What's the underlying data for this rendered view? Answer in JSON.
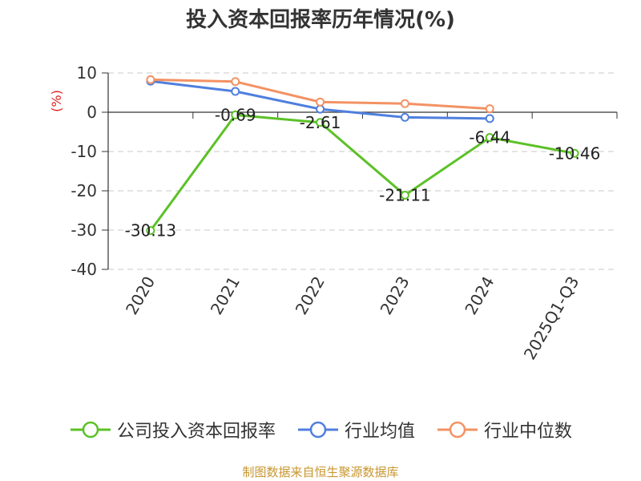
{
  "chart_data": {
    "type": "line",
    "title": "投入资本回报率历年情况(%)",
    "ylabel": "(%)",
    "ylim": [
      -40,
      10
    ],
    "yticks": [
      10,
      0,
      -10,
      -20,
      -30,
      -40
    ],
    "grid": true,
    "legend_position": "bottom",
    "categories": [
      "2020",
      "2021",
      "2022",
      "2023",
      "2024",
      "2025Q1-Q3"
    ],
    "series": [
      {
        "name": "公司投入资本回报率",
        "color": "#5cc127",
        "values": [
          -30.13,
          -0.69,
          -2.61,
          -21.11,
          -6.44,
          -10.46
        ],
        "labels": [
          "-30.13",
          "-0.69",
          "-2.61",
          "-21.11",
          "-6.44",
          "-10.46"
        ]
      },
      {
        "name": "行业均值",
        "color": "#4f7fde",
        "values": [
          7.9,
          5.3,
          0.8,
          -1.3,
          -1.6,
          null
        ]
      },
      {
        "name": "行业中位数",
        "color": "#f39263",
        "values": [
          8.3,
          7.8,
          2.6,
          2.2,
          0.9,
          null
        ]
      }
    ]
  },
  "source_text": "制图数据来自恒生聚源数据库"
}
